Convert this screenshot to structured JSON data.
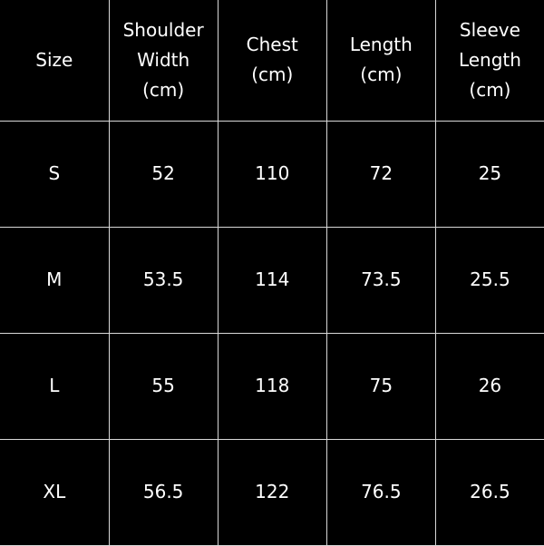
{
  "table": {
    "headers": [
      [
        "Size"
      ],
      [
        "Shoulder",
        "Width",
        "(cm)"
      ],
      [
        "Chest",
        "(cm)"
      ],
      [
        "Length",
        "(cm)"
      ],
      [
        "Sleeve",
        "Length",
        "(cm)"
      ]
    ],
    "rows": [
      [
        "S",
        "52",
        "110",
        "72",
        "25"
      ],
      [
        "M",
        "53.5",
        "114",
        "73.5",
        "25.5"
      ],
      [
        "L",
        "55",
        "118",
        "75",
        "26"
      ],
      [
        "XL",
        "56.5",
        "122",
        "76.5",
        "26.5"
      ]
    ]
  },
  "colors": {
    "background": "#000000",
    "text": "#ffffff",
    "grid": "#d8d8d8"
  }
}
